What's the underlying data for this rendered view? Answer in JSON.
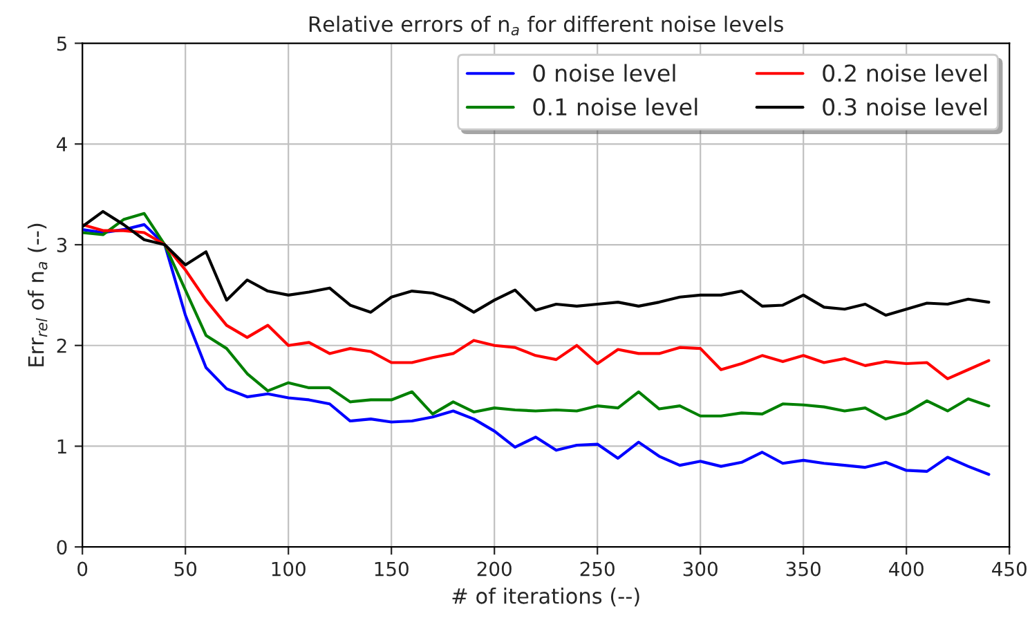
{
  "chart_data": {
    "type": "line",
    "title": "Relative errors of n$_{a}$ for different noise levels",
    "xlabel": "# of iterations (--)",
    "ylabel": "Err$_{rel}$ of n$_{a}$ (--)",
    "x": [
      0,
      10,
      20,
      30,
      40,
      50,
      60,
      70,
      80,
      90,
      100,
      110,
      120,
      130,
      140,
      150,
      160,
      170,
      180,
      190,
      200,
      210,
      220,
      230,
      240,
      250,
      260,
      270,
      280,
      290,
      300,
      310,
      320,
      330,
      340,
      350,
      360,
      370,
      380,
      390,
      400,
      410,
      420,
      430,
      440
    ],
    "xlim": [
      0,
      450
    ],
    "xticks": [
      0,
      50,
      100,
      150,
      200,
      250,
      300,
      350,
      400,
      450
    ],
    "ylim": [
      0,
      5
    ],
    "yticks": [
      0,
      1,
      2,
      3,
      4,
      5
    ],
    "grid": true,
    "legend": "top right",
    "line_style": "solid",
    "series": [
      {
        "name": "0 noise level",
        "color": "#0000ff",
        "values": [
          3.15,
          3.12,
          3.15,
          3.2,
          3.0,
          2.3,
          1.78,
          1.57,
          1.49,
          1.52,
          1.48,
          1.46,
          1.42,
          1.25,
          1.27,
          1.24,
          1.25,
          1.29,
          1.35,
          1.27,
          1.15,
          0.99,
          1.09,
          0.96,
          1.01,
          1.02,
          0.88,
          1.04,
          0.9,
          0.81,
          0.85,
          0.8,
          0.84,
          0.94,
          0.83,
          0.86,
          0.83,
          0.81,
          0.79,
          0.84,
          0.76,
          0.75,
          0.89,
          0.8,
          0.72
        ]
      },
      {
        "name": "0.1 noise level",
        "color": "#008000",
        "values": [
          3.12,
          3.1,
          3.25,
          3.31,
          3.0,
          2.55,
          2.1,
          1.97,
          1.72,
          1.55,
          1.63,
          1.58,
          1.58,
          1.44,
          1.46,
          1.46,
          1.54,
          1.32,
          1.44,
          1.34,
          1.38,
          1.36,
          1.35,
          1.36,
          1.35,
          1.4,
          1.38,
          1.54,
          1.37,
          1.4,
          1.3,
          1.3,
          1.33,
          1.32,
          1.42,
          1.41,
          1.39,
          1.35,
          1.38,
          1.27,
          1.33,
          1.45,
          1.35,
          1.47,
          1.4
        ]
      },
      {
        "name": "0.2 noise level",
        "color": "#ff0000",
        "values": [
          3.2,
          3.14,
          3.14,
          3.12,
          3.0,
          2.75,
          2.45,
          2.2,
          2.08,
          2.2,
          2.0,
          2.03,
          1.92,
          1.97,
          1.94,
          1.83,
          1.83,
          1.88,
          1.92,
          2.05,
          2.0,
          1.98,
          1.9,
          1.86,
          2.0,
          1.82,
          1.96,
          1.92,
          1.92,
          1.98,
          1.97,
          1.76,
          1.82,
          1.9,
          1.84,
          1.9,
          1.83,
          1.87,
          1.8,
          1.84,
          1.82,
          1.83,
          1.67,
          1.76,
          1.85
        ]
      },
      {
        "name": "0.3 noise level",
        "color": "#000000",
        "values": [
          3.18,
          3.33,
          3.2,
          3.05,
          3.0,
          2.8,
          2.93,
          2.45,
          2.65,
          2.54,
          2.5,
          2.53,
          2.57,
          2.4,
          2.33,
          2.48,
          2.54,
          2.52,
          2.45,
          2.33,
          2.45,
          2.55,
          2.35,
          2.41,
          2.39,
          2.41,
          2.43,
          2.39,
          2.43,
          2.48,
          2.5,
          2.5,
          2.54,
          2.39,
          2.4,
          2.5,
          2.38,
          2.36,
          2.41,
          2.3,
          2.36,
          2.42,
          2.41,
          2.46,
          2.43
        ]
      }
    ]
  }
}
